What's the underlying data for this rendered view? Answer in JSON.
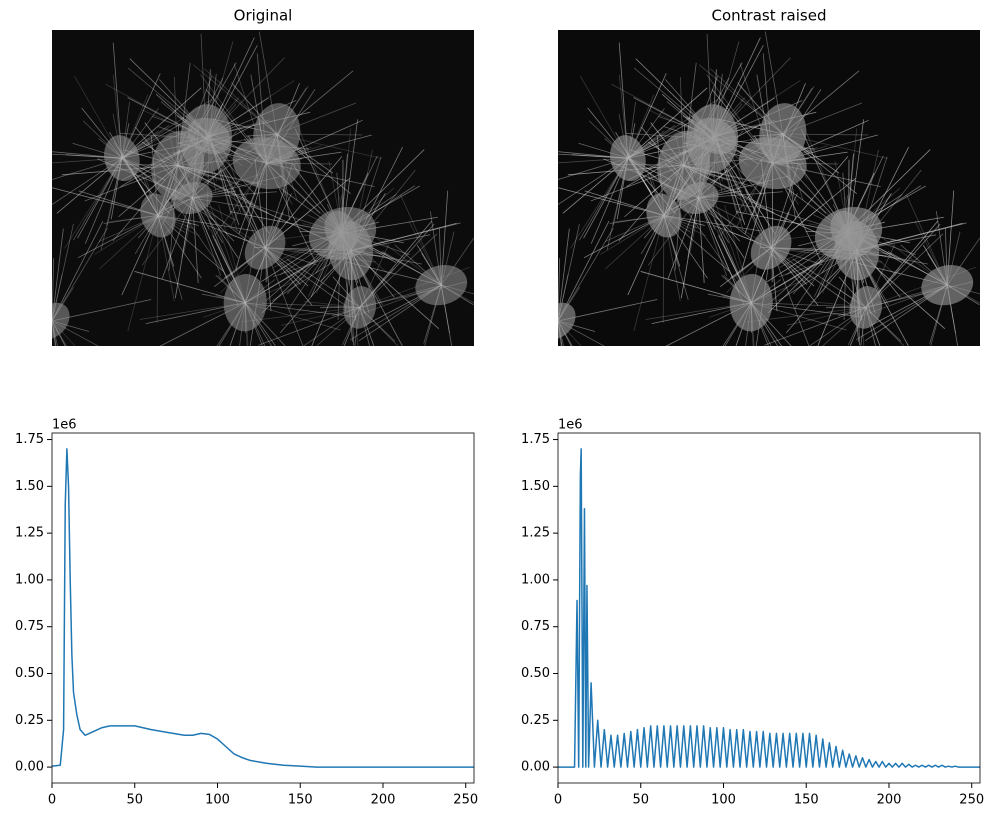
{
  "images": [
    {
      "title": "Original"
    },
    {
      "title": "Contrast raised"
    }
  ],
  "chart_data": [
    {
      "type": "line",
      "color": "#1f77b4",
      "offset_label": "1e6",
      "x": [
        0,
        5,
        7,
        8,
        9,
        10,
        11,
        12,
        13,
        15,
        17,
        20,
        25,
        30,
        35,
        40,
        50,
        55,
        60,
        70,
        80,
        85,
        90,
        95,
        100,
        105,
        110,
        115,
        120,
        130,
        140,
        150,
        160,
        200,
        255
      ],
      "values": [
        0.005,
        0.01,
        0.2,
        1.4,
        1.7,
        1.5,
        1.0,
        0.6,
        0.4,
        0.28,
        0.2,
        0.17,
        0.19,
        0.21,
        0.22,
        0.22,
        0.22,
        0.21,
        0.2,
        0.185,
        0.17,
        0.17,
        0.18,
        0.175,
        0.15,
        0.11,
        0.07,
        0.05,
        0.035,
        0.02,
        0.01,
        0.005,
        0,
        0,
        0
      ],
      "xlim": [
        0,
        255
      ],
      "ylim": [
        -0.085,
        1.785
      ],
      "xticks": [
        0,
        50,
        100,
        150,
        200,
        250
      ],
      "yticks": [
        {
          "value": 0,
          "label": "0.00"
        },
        {
          "value": 0.25,
          "label": "0.25"
        },
        {
          "value": 0.5,
          "label": "0.50"
        },
        {
          "value": 0.75,
          "label": "0.75"
        },
        {
          "value": 1,
          "label": "1.00"
        },
        {
          "value": 1.25,
          "label": "1.25"
        },
        {
          "value": 1.5,
          "label": "1.50"
        },
        {
          "value": 1.75,
          "label": "1.75"
        }
      ]
    },
    {
      "type": "line",
      "color": "#1f77b4",
      "offset_label": "1e6",
      "x": [
        0,
        10,
        11.5,
        12.5,
        13.5,
        14,
        15,
        16,
        16.8,
        17.5,
        18.5,
        20,
        22,
        24,
        26,
        28,
        30,
        32,
        34,
        36,
        38,
        40,
        42,
        44,
        46,
        48,
        50,
        52,
        54,
        56,
        58,
        60,
        62,
        64,
        66,
        68,
        70,
        72,
        74,
        76,
        78,
        80,
        82,
        84,
        86,
        88,
        90,
        92,
        94,
        96,
        98,
        100,
        102,
        104,
        106,
        108,
        110,
        112,
        114,
        116,
        118,
        120,
        122,
        124,
        126,
        128,
        130,
        132,
        134,
        136,
        138,
        140,
        142,
        144,
        146,
        148,
        150,
        152,
        154,
        156,
        158,
        160,
        162,
        164,
        166,
        168,
        170,
        172,
        174,
        176,
        178,
        180,
        182,
        184,
        186,
        188,
        190,
        192,
        194,
        196,
        198,
        200,
        202,
        204,
        206,
        208,
        210,
        212,
        214,
        216,
        218,
        220,
        222,
        224,
        226,
        228,
        230,
        232,
        234,
        236,
        238,
        240,
        242,
        255
      ],
      "values": [
        0,
        0,
        0.89,
        0,
        1.55,
        1.7,
        0,
        1.38,
        0,
        0.97,
        0,
        0.45,
        0,
        0.25,
        0,
        0.2,
        0,
        0.17,
        0,
        0.17,
        0,
        0.18,
        0,
        0.19,
        0,
        0.2,
        0,
        0.21,
        0,
        0.22,
        0,
        0.22,
        0,
        0.22,
        0,
        0.22,
        0,
        0.22,
        0,
        0.22,
        0,
        0.22,
        0,
        0.22,
        0,
        0.22,
        0,
        0.21,
        0,
        0.21,
        0,
        0.21,
        0,
        0.2,
        0,
        0.2,
        0,
        0.2,
        0,
        0.19,
        0,
        0.19,
        0,
        0.19,
        0,
        0.18,
        0,
        0.18,
        0,
        0.18,
        0,
        0.18,
        0,
        0.18,
        0,
        0.18,
        0,
        0.18,
        0,
        0.17,
        0,
        0.15,
        0,
        0.13,
        0,
        0.11,
        0,
        0.09,
        0,
        0.07,
        0,
        0.06,
        0,
        0.05,
        0,
        0.04,
        0,
        0.03,
        0,
        0.03,
        0,
        0.02,
        0,
        0.02,
        0,
        0.02,
        0,
        0.015,
        0,
        0.01,
        0,
        0.01,
        0,
        0.01,
        0,
        0.01,
        0,
        0.01,
        0,
        0.005,
        0,
        0.005,
        0,
        0
      ],
      "xlim": [
        0,
        255
      ],
      "ylim": [
        -0.085,
        1.785
      ],
      "xticks": [
        0,
        50,
        100,
        150,
        200,
        250
      ],
      "yticks": [
        {
          "value": 0,
          "label": "0.00"
        },
        {
          "value": 0.25,
          "label": "0.25"
        },
        {
          "value": 0.5,
          "label": "0.50"
        },
        {
          "value": 0.75,
          "label": "0.75"
        },
        {
          "value": 1,
          "label": "1.00"
        },
        {
          "value": 1.25,
          "label": "1.25"
        },
        {
          "value": 1.5,
          "label": "1.50"
        },
        {
          "value": 1.75,
          "label": "1.75"
        }
      ]
    }
  ]
}
